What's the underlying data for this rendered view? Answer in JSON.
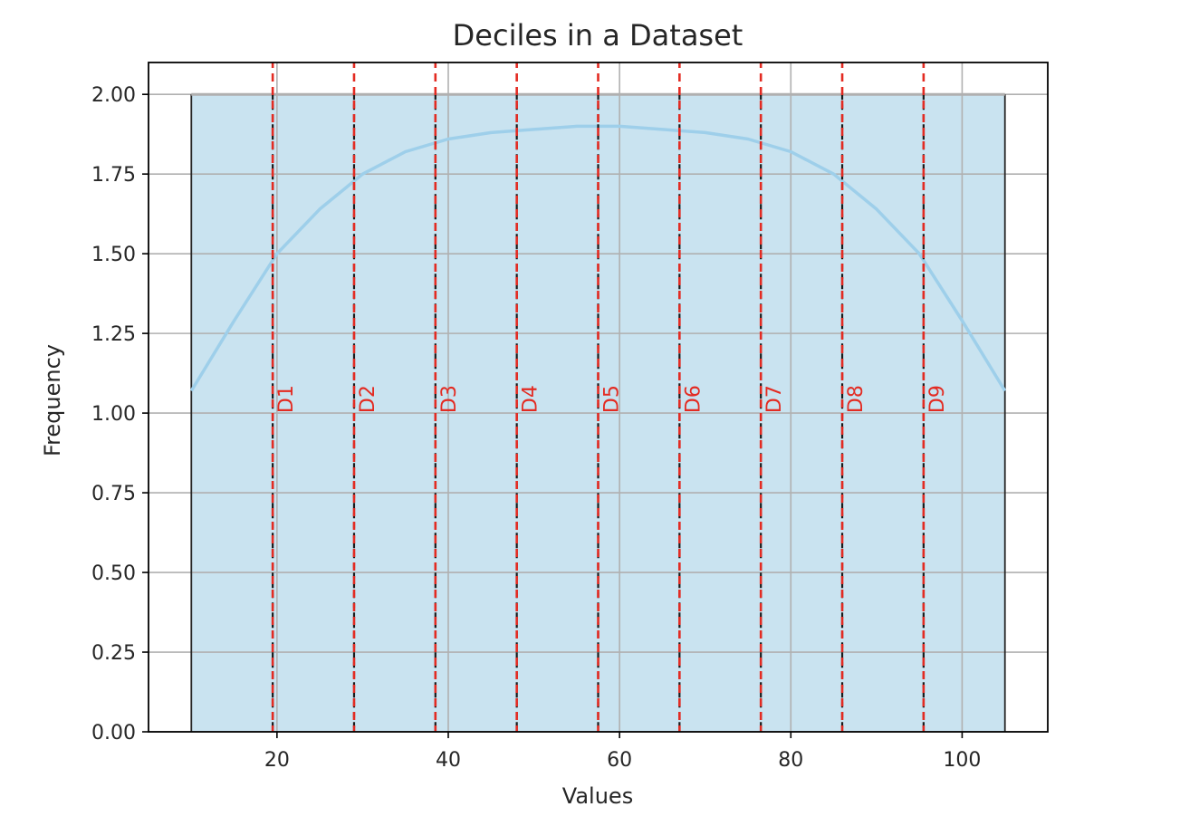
{
  "chart_data": {
    "type": "bar",
    "title": "Deciles in a Dataset",
    "xlabel": "Values",
    "ylabel": "Frequency",
    "xlim": [
      5,
      110
    ],
    "ylim": [
      0,
      2.1
    ],
    "grid": true,
    "x_ticks": [
      20,
      40,
      60,
      80,
      100
    ],
    "y_ticks": [
      0.0,
      0.25,
      0.5,
      0.75,
      1.0,
      1.25,
      1.5,
      1.75,
      2.0
    ],
    "histogram": {
      "bins": [
        {
          "start": 10,
          "end": 105,
          "value": 2
        }
      ],
      "bar_color": "#c9e3f0",
      "edge_color": "#262626",
      "top_edge_color": "#b0b0b0"
    },
    "kde_curve": {
      "name": "",
      "color": "#9ecfea",
      "x": [
        10,
        15,
        20,
        25,
        30,
        35,
        40,
        45,
        50,
        55,
        60,
        65,
        70,
        75,
        80,
        85,
        90,
        95,
        100,
        105
      ],
      "y": [
        1.07,
        1.29,
        1.5,
        1.64,
        1.75,
        1.82,
        1.86,
        1.88,
        1.89,
        1.9,
        1.9,
        1.89,
        1.88,
        1.86,
        1.82,
        1.75,
        1.64,
        1.5,
        1.29,
        1.07
      ]
    },
    "deciles": {
      "color": "#e32b22",
      "black_dash_color": "#1a1a1a",
      "label_y": 1.0,
      "items": [
        {
          "label": "D1",
          "x": 19.5
        },
        {
          "label": "D2",
          "x": 29.0
        },
        {
          "label": "D3",
          "x": 38.5
        },
        {
          "label": "D4",
          "x": 48.0
        },
        {
          "label": "D5",
          "x": 57.5
        },
        {
          "label": "D6",
          "x": 67.0
        },
        {
          "label": "D7",
          "x": 76.5
        },
        {
          "label": "D8",
          "x": 86.0
        },
        {
          "label": "D9",
          "x": 95.5
        }
      ]
    }
  }
}
